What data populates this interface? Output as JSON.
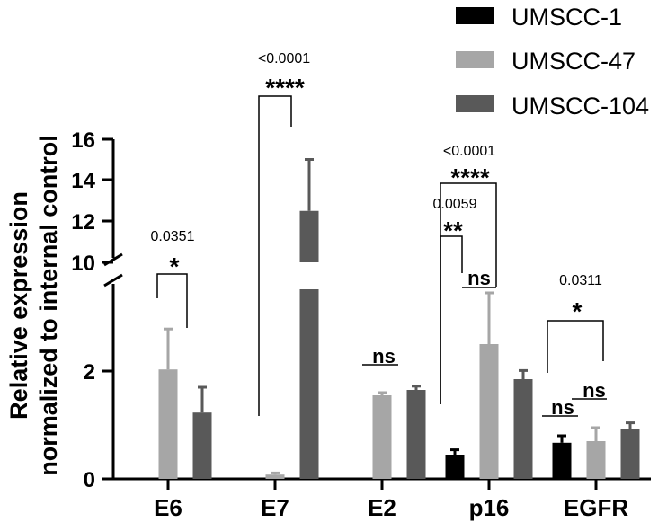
{
  "chart_data": {
    "type": "bar",
    "categories": [
      "E6",
      "E7",
      "E2",
      "p16",
      "EGFR"
    ],
    "ylabel_lines": [
      "Relative expression",
      "normalized to internal control"
    ],
    "y_lower_ticks": [
      "0",
      "2"
    ],
    "y_upper_ticks": [
      "10",
      "12",
      "14",
      "16"
    ],
    "axis_break": {
      "lower_max": 3.15,
      "upper_min": 10
    },
    "series": [
      {
        "name": "UMSCC-1",
        "color": "#000000",
        "values": [
          null,
          null,
          null,
          0.45,
          0.67
        ],
        "errors": [
          null,
          null,
          null,
          0.09,
          0.13
        ]
      },
      {
        "name": "UMSCC-47",
        "color": "#a6a6a6",
        "values": [
          2.03,
          0.08,
          1.55,
          2.5,
          0.7
        ],
        "errors": [
          0.75,
          0.03,
          0.05,
          0.95,
          0.25
        ]
      },
      {
        "name": "UMSCC-104",
        "color": "#595959",
        "values": [
          1.23,
          12.5,
          1.65,
          1.85,
          0.92
        ],
        "errors": [
          0.47,
          2.5,
          0.07,
          0.16,
          0.12
        ]
      }
    ],
    "annotations": [
      {
        "id": "e6",
        "pvalue": "0.0351",
        "stars": "*"
      },
      {
        "id": "e7",
        "pvalue": "<0.0001",
        "stars": "****"
      },
      {
        "id": "e2",
        "ns": "ns"
      },
      {
        "id": "p16a",
        "pvalue": "0.0059",
        "stars": "**"
      },
      {
        "id": "p16b",
        "pvalue": "<0.0001",
        "stars": "****"
      },
      {
        "id": "p16c",
        "ns": "ns"
      },
      {
        "id": "egfr",
        "pvalue": "0.0311",
        "stars": "*"
      },
      {
        "id": "egfr_ns1",
        "ns": "ns"
      },
      {
        "id": "egfr_ns2",
        "ns": "ns"
      }
    ],
    "legend_position": "top-right",
    "grid": false
  }
}
